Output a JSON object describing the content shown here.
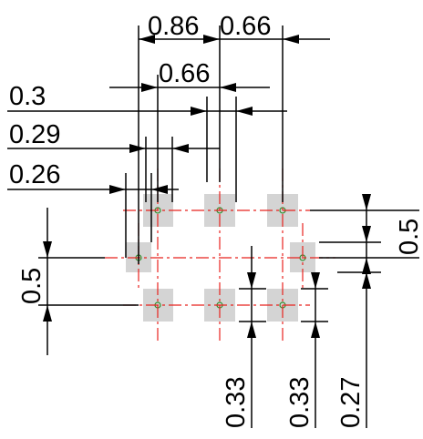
{
  "colors": {
    "background": "#ffffff",
    "dimension": "#000000",
    "centerline": "#e8231f",
    "pad_fill": "#d4d4d4",
    "pad_mark": "#2f8f2f"
  },
  "dimensions": {
    "pitch_x_left": "0.86",
    "pitch_x_right": "0.66",
    "pitch_x_mid": "0.66",
    "offset_a": "0.3",
    "offset_b": "0.29",
    "offset_c": "0.26",
    "pitch_y_left": "0.5",
    "pitch_y_right": "0.5",
    "pad_h_1": "0.33",
    "pad_h_2": "0.33",
    "offset_y_right": "0.27"
  }
}
